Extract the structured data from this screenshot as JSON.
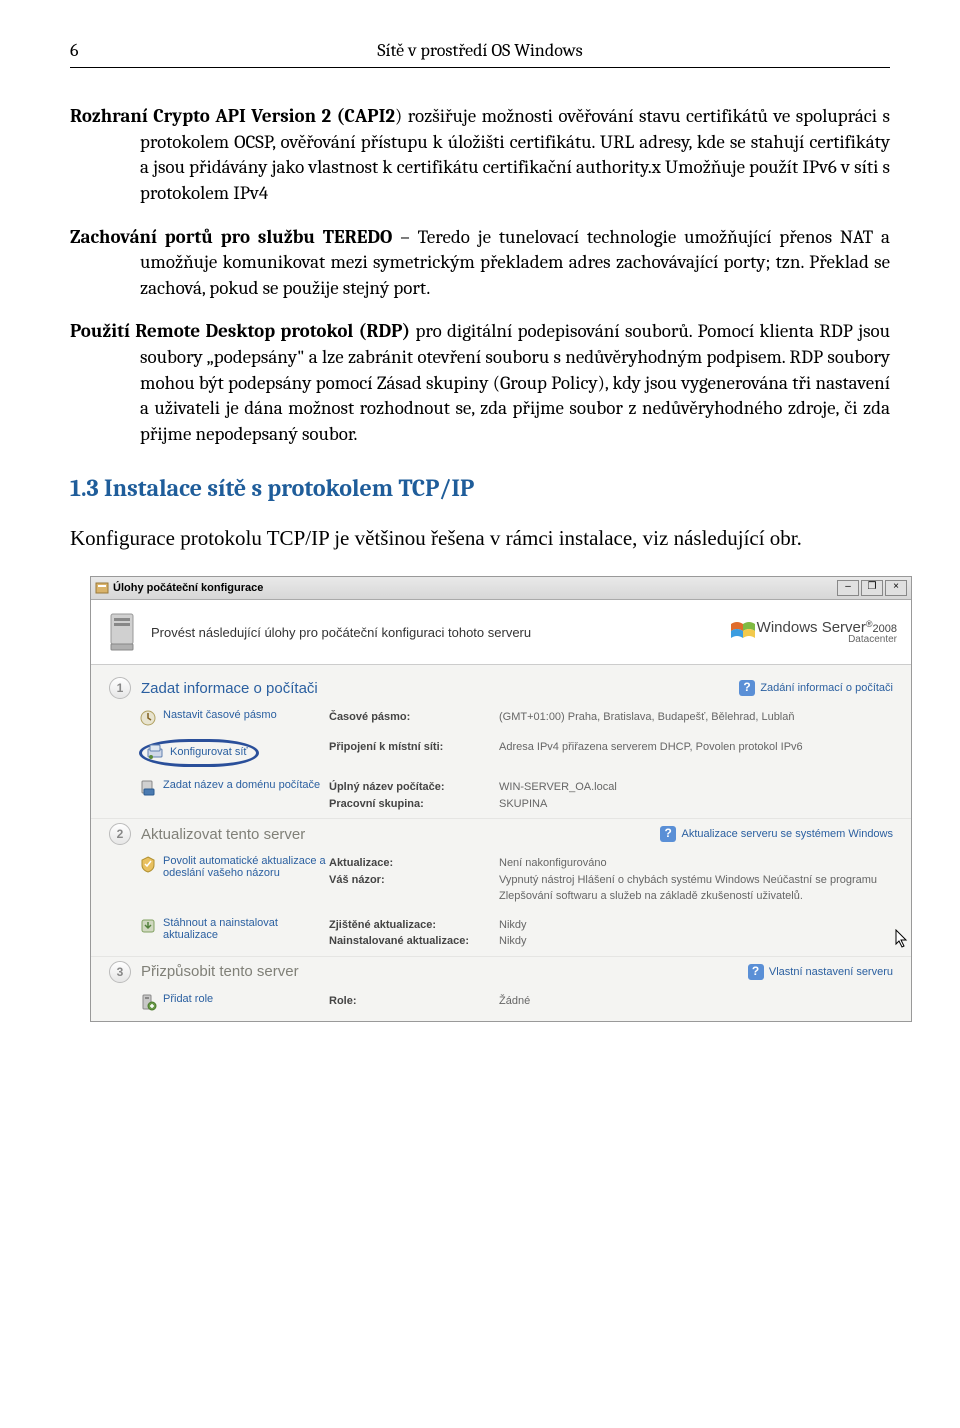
{
  "page_number": "6",
  "header_title": "Sítě v prostředí OS Windows",
  "para1_lead": "Rozhraní Crypto API Version 2 (CAPI2",
  "para1_rest": ") rozšiřuje možnosti ověřování stavu certifikátů ve spolupráci s protokolem OCSP, ověřování přístupu k úložišti certifikátu. URL adresy, kde se stahují certifikáty a jsou přidávány jako vlastnost k certifikátu certifikační authority.x Umožňuje použít IPv6 v síti s protokolem IPv4",
  "para2_lead": "Zachování portů pro službu TEREDO",
  "para2_rest": " – Teredo je tunelovací technologie umožňující přenos NAT a umožňuje komunikovat mezi symetrickým překladem adres zachovávající porty; tzn. Překlad se zachová, pokud se použije stejný port.",
  "para3_lead": "Použití Remote Desktop protokol (RDP)",
  "para3_rest": " pro digitální podepisování souborů. Pomocí klienta RDP jsou soubory „podepsány\" a lze zabránit otevření souboru s nedůvěryhodným podpisem. RDP soubory mohou být podepsány pomocí Zásad skupiny (Group Policy), kdy jsou vygenerována tři nastavení a uživateli je dána možnost rozhodnout se, zda přijme soubor z nedůvěryhodného zdroje, či zda přijme nepodepsaný soubor.",
  "section_heading": "1.3  Instalace sítě s protokolem TCP/IP",
  "intro_para": "Konfigurace protokolu TCP/IP je většinou řešena v rámci instalace, viz následující obr.",
  "win": {
    "title": "Úlohy počáteční konfigurace",
    "banner_text": "Provést následující úlohy pro počáteční konfiguraci tohoto serveru",
    "brand_main": "Windows Server",
    "brand_year": "2008",
    "brand_edition": "Datacenter",
    "sections": [
      {
        "num": "1",
        "title": "Zadat informace o počítači",
        "active": true,
        "help": "Zadání informací o počítači",
        "tasks": [
          {
            "link": "Nastavit časové pásmo",
            "labels": [
              "Časové pásmo:"
            ],
            "values": [
              "(GMT+01:00) Praha, Bratislava, Budapešť, Bělehrad, Lublaň"
            ],
            "highlight": false
          },
          {
            "link": "Konfigurovat síť",
            "labels": [
              "Připojení k místní síti:"
            ],
            "values": [
              "Adresa IPv4 přiřazena serverem DHCP, Povolen protokol IPv6"
            ],
            "highlight": true
          },
          {
            "link": "Zadat název a doménu počítače",
            "labels": [
              "Úplný název počítače:",
              "Pracovní skupina:"
            ],
            "values": [
              "WIN-SERVER_OA.local",
              "SKUPINA"
            ],
            "highlight": false
          }
        ]
      },
      {
        "num": "2",
        "title": "Aktualizovat tento server",
        "active": false,
        "help": "Aktualizace serveru se systémem Windows",
        "tasks": [
          {
            "link": "Povolit automatické aktualizace a odeslání vašeho názoru",
            "labels": [
              "Aktualizace:",
              "Váš názor:"
            ],
            "values": [
              "Není nakonfigurováno",
              "Vypnutý nástroj Hlášení o chybách systému Windows Neúčastní se programu Zlepšování softwaru a služeb na základě zkušeností uživatelů."
            ],
            "highlight": false
          },
          {
            "link": "Stáhnout a nainstalovat aktualizace",
            "labels": [
              "Zjištěné aktualizace:",
              "Nainstalované aktualizace:"
            ],
            "values": [
              "Nikdy",
              "Nikdy"
            ],
            "highlight": false
          }
        ]
      },
      {
        "num": "3",
        "title": "Přizpůsobit tento server",
        "active": false,
        "help": "Vlastní nastavení serveru",
        "tasks": [
          {
            "link": "Přidat role",
            "labels": [
              "Role:"
            ],
            "values": [
              "Žádné"
            ],
            "highlight": false
          }
        ]
      }
    ]
  }
}
